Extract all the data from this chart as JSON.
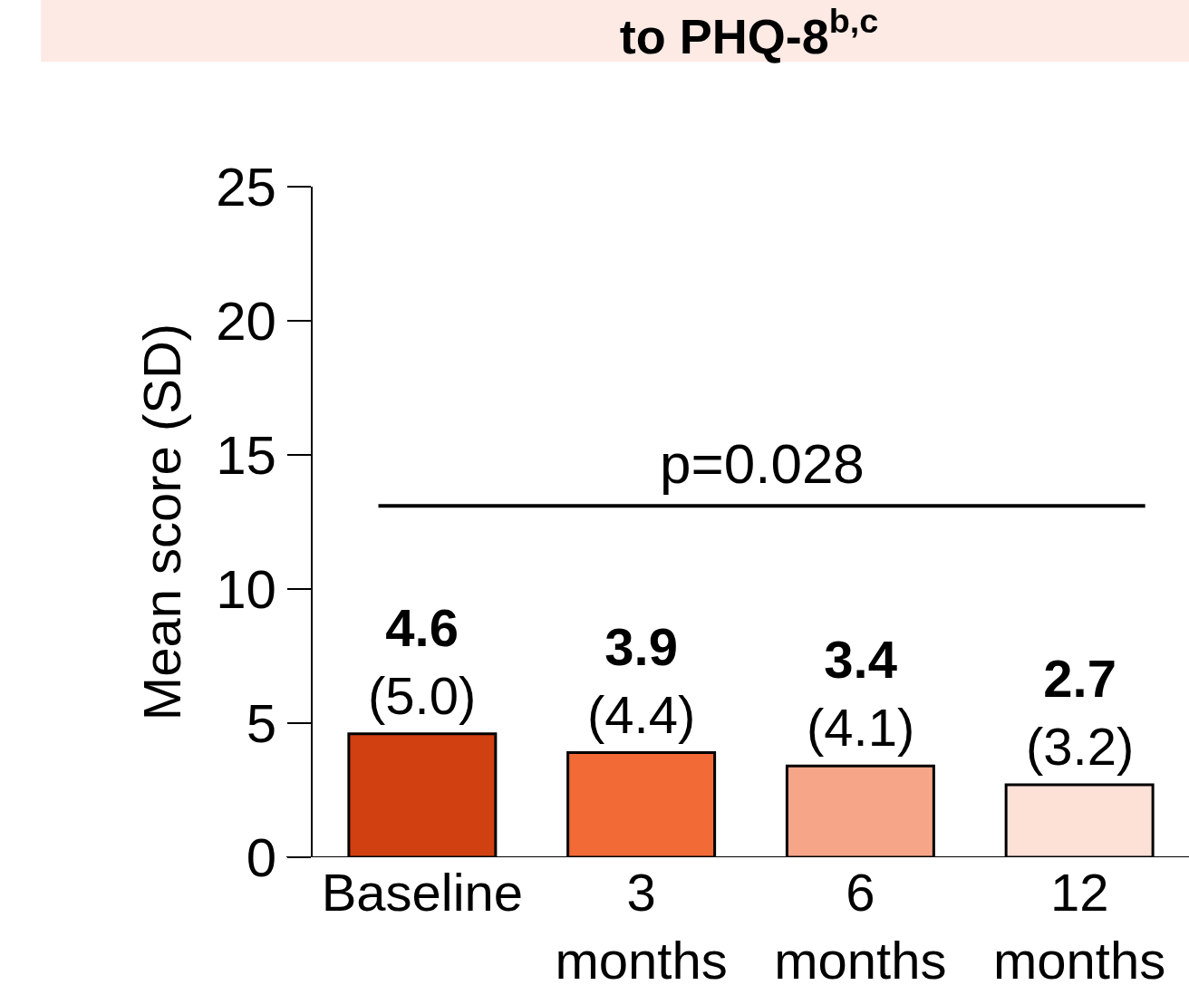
{
  "chart_data": {
    "type": "bar",
    "title": "to PHQ-8$^{b,c}$",
    "ylabel": "Mean score (SD)",
    "categories": [
      "Baseline",
      "3\nmonths",
      "6\nmonths",
      "12\nmonths"
    ],
    "values": [
      4.6,
      3.9,
      3.4,
      2.7
    ],
    "colors": [
      "#d04010",
      "#f26a36",
      "#f7a588",
      "#fde0d6"
    ],
    "value_labels": [
      "4.6\n(5.0)",
      "3.9\n(4.4)",
      "3.4\n(4.1)",
      "2.7\n(3.2)"
    ],
    "annotations": [
      "p=0.028"
    ],
    "ref_lines": [
      {
        "axis": "y",
        "value": 13.1,
        "color": "#000000"
      }
    ],
    "ylim": [
      0,
      25
    ],
    "yticks": [
      0,
      5,
      10,
      15,
      20,
      25
    ]
  }
}
